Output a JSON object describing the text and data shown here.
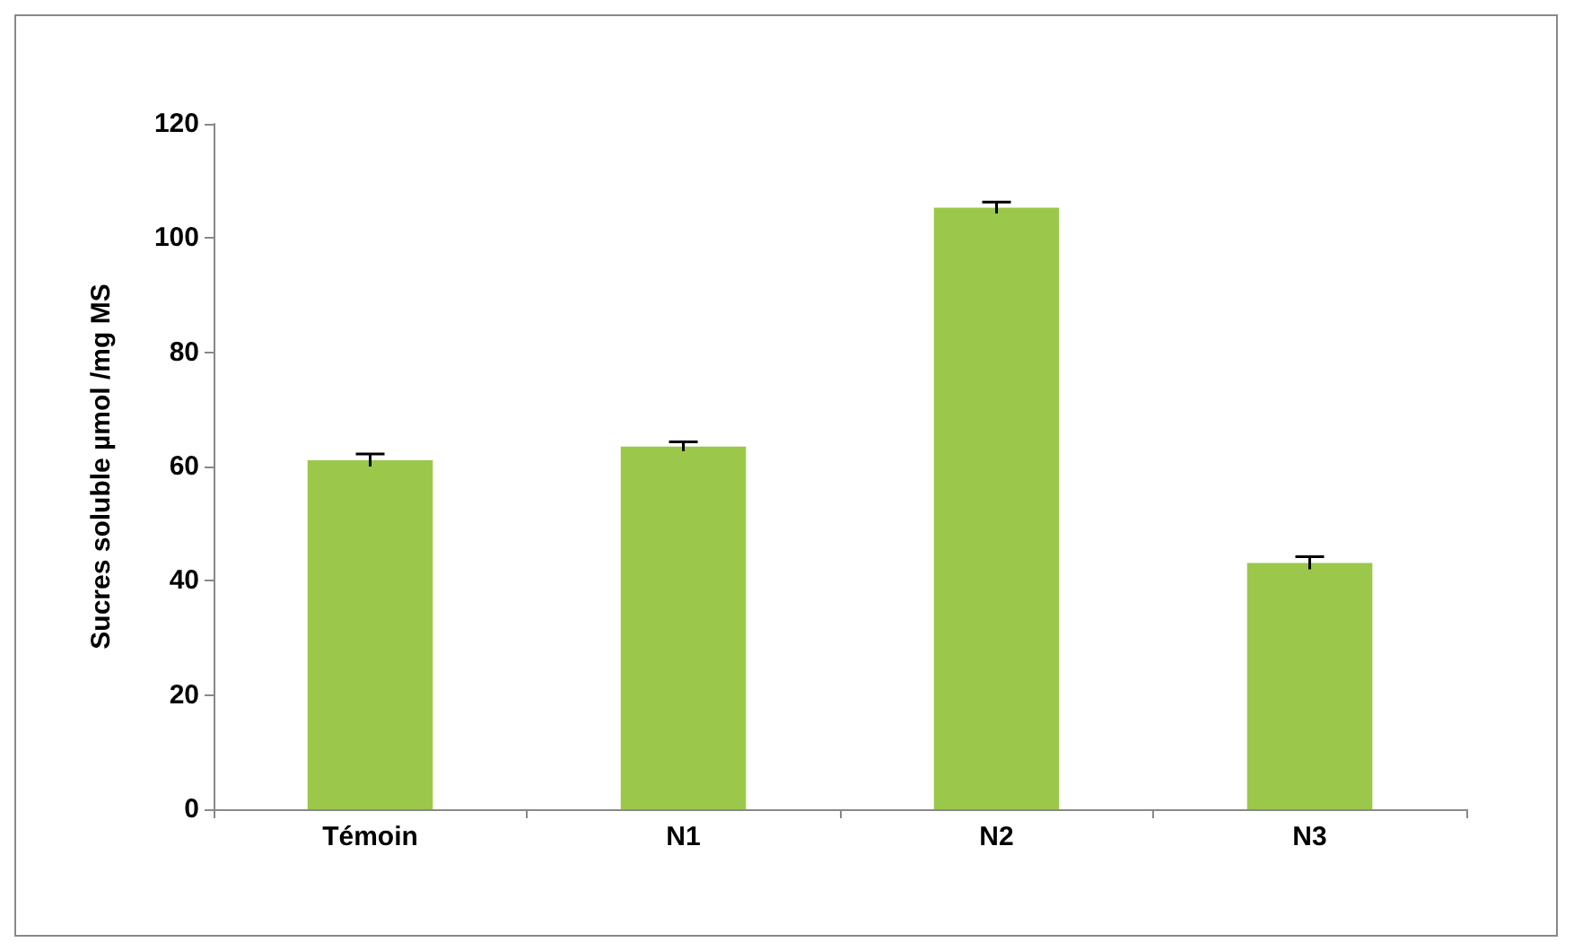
{
  "chart_data": {
    "type": "bar",
    "ylabel": "Sucres soluble µmol /mg MS",
    "categories": [
      "Témoin",
      "N1",
      "N2",
      "N3"
    ],
    "values": [
      61.1,
      63.5,
      105.3,
      43.1
    ],
    "errors": [
      1.1,
      0.8,
      1.0,
      1.1
    ],
    "color": "#9bc84a",
    "ylim": [
      0,
      120
    ],
    "yticks": [
      0,
      20,
      40,
      60,
      80,
      100,
      120
    ],
    "grid": false
  }
}
